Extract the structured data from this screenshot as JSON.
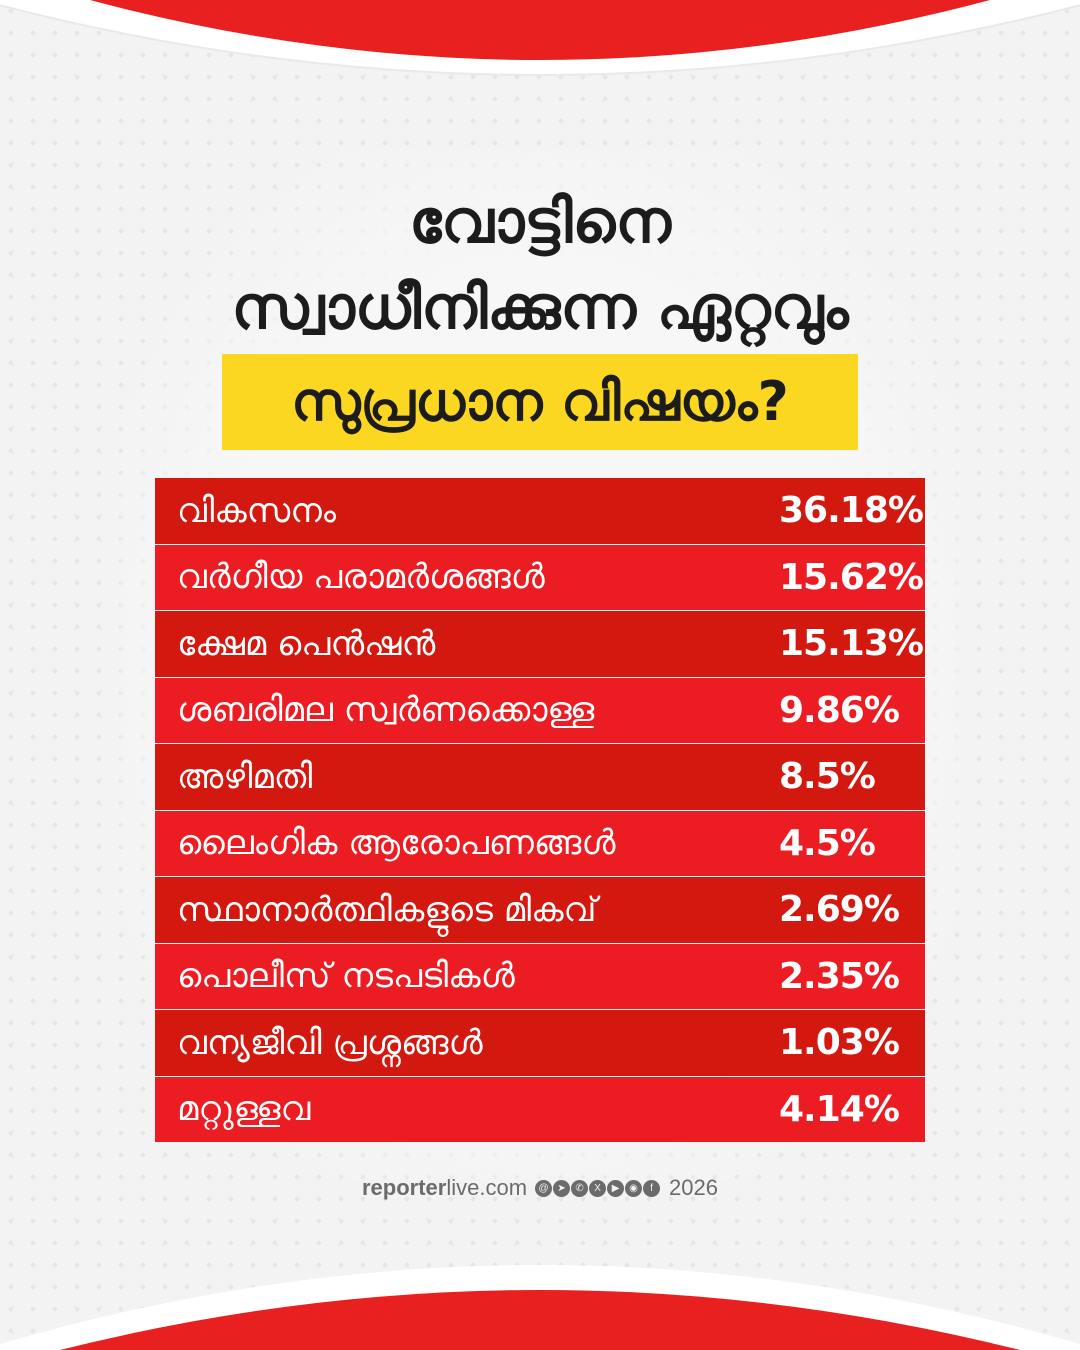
{
  "headline": {
    "line1": "വോട്ടിനെ",
    "line2": "സ്വാധീനിക്കുന്ന ഏറ്റവും",
    "line3": "സുപ്രധാന വിഷയം?"
  },
  "colors": {
    "red_dark": "#d3180f",
    "red_light": "#ec1c23",
    "highlight_yellow": "#fbd721",
    "arc_red": "#e8201f"
  },
  "table": {
    "rows": [
      {
        "issue": "വികസനം",
        "percent": "36.18%"
      },
      {
        "issue": "വർഗീയ പരാമർശങ്ങൾ",
        "percent": "15.62%"
      },
      {
        "issue": "ക്ഷേമ പെൻഷൻ",
        "percent": "15.13%"
      },
      {
        "issue": "ശബരിമല സ്വർണക്കൊള്ള",
        "percent": "9.86%"
      },
      {
        "issue": "അഴിമതി",
        "percent": "8.5%"
      },
      {
        "issue": "ലൈംഗിക ആരോപണങ്ങൾ",
        "percent": "4.5%"
      },
      {
        "issue": "സ്ഥാനാർത്ഥികളുടെ മികവ്",
        "percent": "2.69%"
      },
      {
        "issue": "പൊലീസ് നടപടികൾ",
        "percent": "2.35%"
      },
      {
        "issue": "വന്യജീവി പ്രശ്നങ്ങൾ",
        "percent": "1.03%"
      },
      {
        "issue": "മറ്റുള്ളവ",
        "percent": "4.14%"
      }
    ]
  },
  "footer": {
    "site_bold": "reporter",
    "site_rest": "live.com",
    "year": "2026",
    "social_icons": [
      "threads-icon",
      "telegram-icon",
      "whatsapp-icon",
      "x-icon",
      "youtube-icon",
      "instagram-icon",
      "facebook-icon"
    ]
  }
}
